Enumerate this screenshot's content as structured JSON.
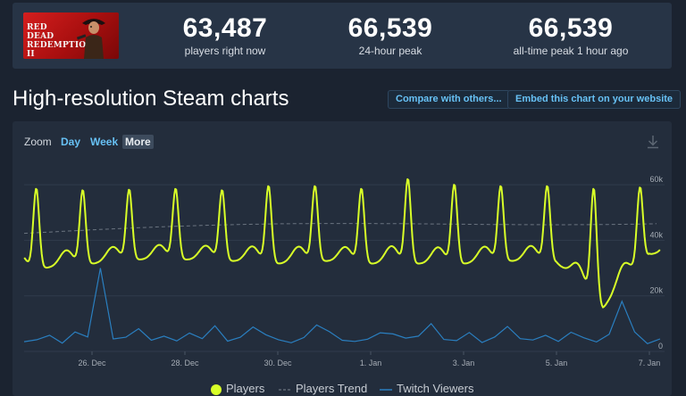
{
  "game": {
    "logo_text": "RED DEAD REDEMPTION II"
  },
  "stats": [
    {
      "value": "63,487",
      "label": "players right now"
    },
    {
      "value": "66,539",
      "label": "24-hour peak"
    },
    {
      "value": "66,539",
      "label": "all-time peak 1 hour ago"
    }
  ],
  "section_title": "High-resolution Steam charts",
  "buttons": {
    "compare": "Compare with others...",
    "embed": "Embed this chart on your website"
  },
  "zoom": {
    "label": "Zoom",
    "options": [
      "Day",
      "Week",
      "More"
    ],
    "active": "More"
  },
  "colors": {
    "players": "#d8ff28",
    "trend": "#6b7480",
    "twitch": "#2a7fc0",
    "accent": "#67c1f5"
  },
  "chart_data": {
    "type": "line",
    "x_ticks": [
      "26. Dec",
      "28. Dec",
      "30. Dec",
      "1. Jan",
      "3. Jan",
      "5. Jan",
      "7. Jan"
    ],
    "y_ticks": [
      "0",
      "20k",
      "40k",
      "60k"
    ],
    "ylim": [
      0,
      70000
    ],
    "grid": true,
    "legend_position": "bottom",
    "series": [
      {
        "name": "Players",
        "daily_peaks": [
          {
            "date": "24. Dec",
            "value": 58500
          },
          {
            "date": "25. Dec",
            "value": 58000
          },
          {
            "date": "26. Dec",
            "value": 58200
          },
          {
            "date": "27. Dec",
            "value": 58500
          },
          {
            "date": "28. Dec",
            "value": 58000
          },
          {
            "date": "29. Dec",
            "value": 59500
          },
          {
            "date": "30. Dec",
            "value": 59500
          },
          {
            "date": "31. Dec",
            "value": 58500
          },
          {
            "date": "1. Jan",
            "value": 62000
          },
          {
            "date": "2. Jan",
            "value": 60000
          },
          {
            "date": "3. Jan",
            "value": 59500
          },
          {
            "date": "4. Jan",
            "value": 59500
          },
          {
            "date": "5. Jan",
            "value": 58500
          },
          {
            "date": "6. Jan",
            "value": 59000
          },
          {
            "date": "7. Jan",
            "value": 60500
          },
          {
            "date": "8. Jan",
            "value": 66539
          }
        ],
        "daily_lows": [
          {
            "date": "24. Dec",
            "value": 27000
          },
          {
            "date": "25. Dec",
            "value": 30000
          },
          {
            "date": "26. Dec",
            "value": 31500
          },
          {
            "date": "27. Dec",
            "value": 33000
          },
          {
            "date": "28. Dec",
            "value": 33000
          },
          {
            "date": "29. Dec",
            "value": 32500
          },
          {
            "date": "30. Dec",
            "value": 31500
          },
          {
            "date": "31. Dec",
            "value": 32500
          },
          {
            "date": "1. Jan",
            "value": 31500
          },
          {
            "date": "2. Jan",
            "value": 31500
          },
          {
            "date": "3. Jan",
            "value": 31500
          },
          {
            "date": "4. Jan",
            "value": 32500
          },
          {
            "date": "5. Jan",
            "value": 32000
          },
          {
            "date": "6. Jan",
            "value": 15500
          },
          {
            "date": "7. Jan",
            "value": 35000
          }
        ],
        "current": 63487
      },
      {
        "name": "Players Trend",
        "start": 42500,
        "end": 47500
      },
      {
        "name": "Twitch Viewers",
        "values": [
          3500,
          4200,
          5800,
          3000,
          7000,
          5200,
          30000,
          4500,
          5100,
          8200,
          4000,
          5500,
          3800,
          6600,
          4600,
          9200,
          3700,
          5100,
          8800,
          6000,
          4200,
          3100,
          5000,
          9500,
          7100,
          4000,
          3600,
          4400,
          6700,
          6300,
          4800,
          5500,
          10000,
          4300,
          3900,
          6800,
          3200,
          5200,
          9000,
          4600,
          4100,
          5800,
          3600,
          6900,
          4900,
          3400,
          6200,
          18000,
          7000,
          2800,
          4500
        ]
      }
    ]
  }
}
